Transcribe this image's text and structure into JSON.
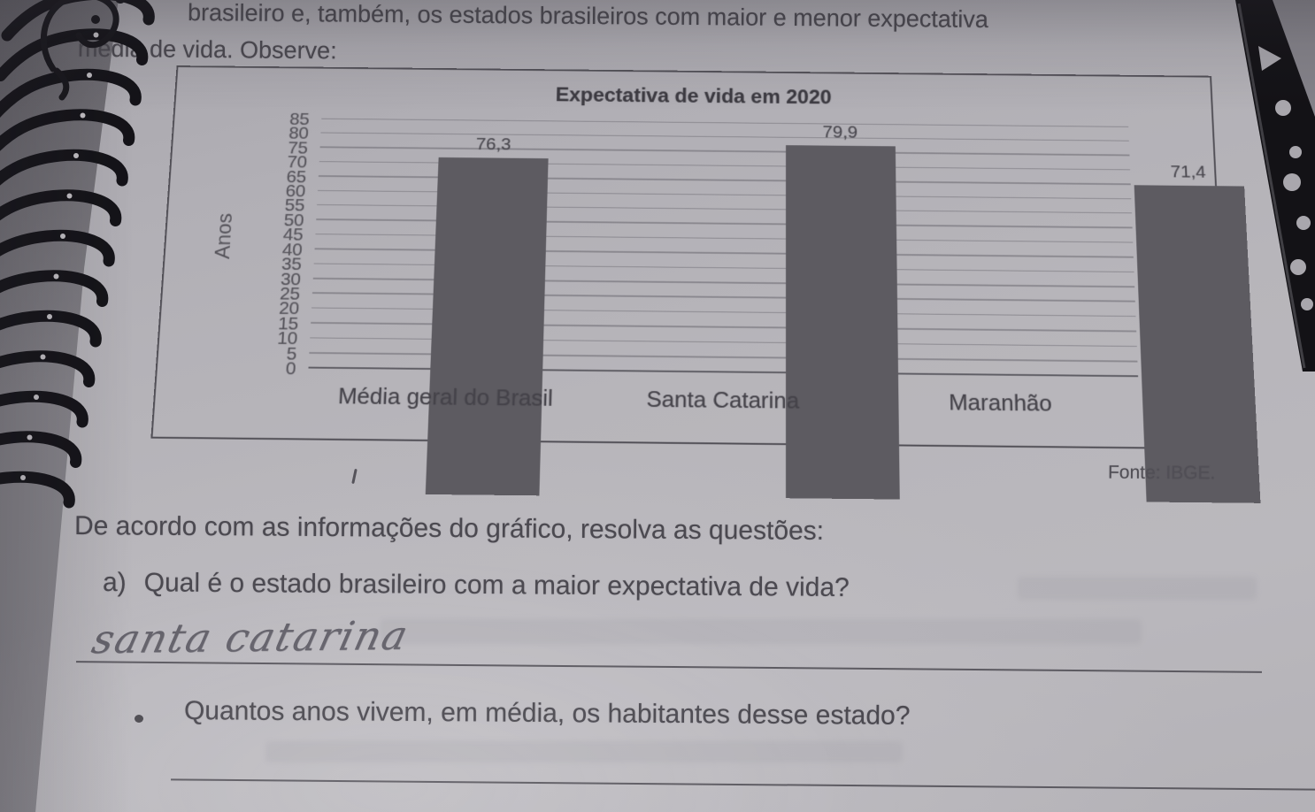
{
  "header": {
    "intro_line1": "brasileiro e, também, os estados brasileiros com maior e menor expectativa",
    "intro_line2": "média de vida. Observe:"
  },
  "chart_data": {
    "type": "bar",
    "title": "Expectativa de vida em 2020",
    "ylabel": "Anos",
    "xlabel": "",
    "categories": [
      "Média geral do Brasil",
      "Santa Catarina",
      "Maranhão"
    ],
    "values": [
      76.3,
      79.9,
      71.4
    ],
    "value_labels": [
      "76,3",
      "79,9",
      "71,4"
    ],
    "ylim": [
      0,
      85
    ],
    "ytick_step": 5,
    "yticks": [
      85,
      80,
      75,
      70,
      65,
      60,
      55,
      50,
      45,
      40,
      35,
      30,
      25,
      20,
      15,
      10,
      5,
      0
    ],
    "grid": true,
    "legend": "none",
    "source": "Fonte: IBGE."
  },
  "questions": {
    "instruction": "De acordo com as informações do gráfico, resolva as questões:",
    "item_a_label": "a)",
    "item_a_text": "Qual é o estado brasileiro com a maior expectativa de vida?",
    "item_a_answer_handwritten": "santa catarina",
    "bullet_glyph": "•",
    "bullet_text": "Quantos anos vivem, em média, os habitantes desse estado?"
  },
  "colors": {
    "paper": "#b5b3b8",
    "ink": "#4b4950",
    "bar": "#5d5b61",
    "gridline": "#95939a",
    "chart_border": "#514f56",
    "pencil_handwriting": "#63616a",
    "spiral_binding": "#141318"
  }
}
